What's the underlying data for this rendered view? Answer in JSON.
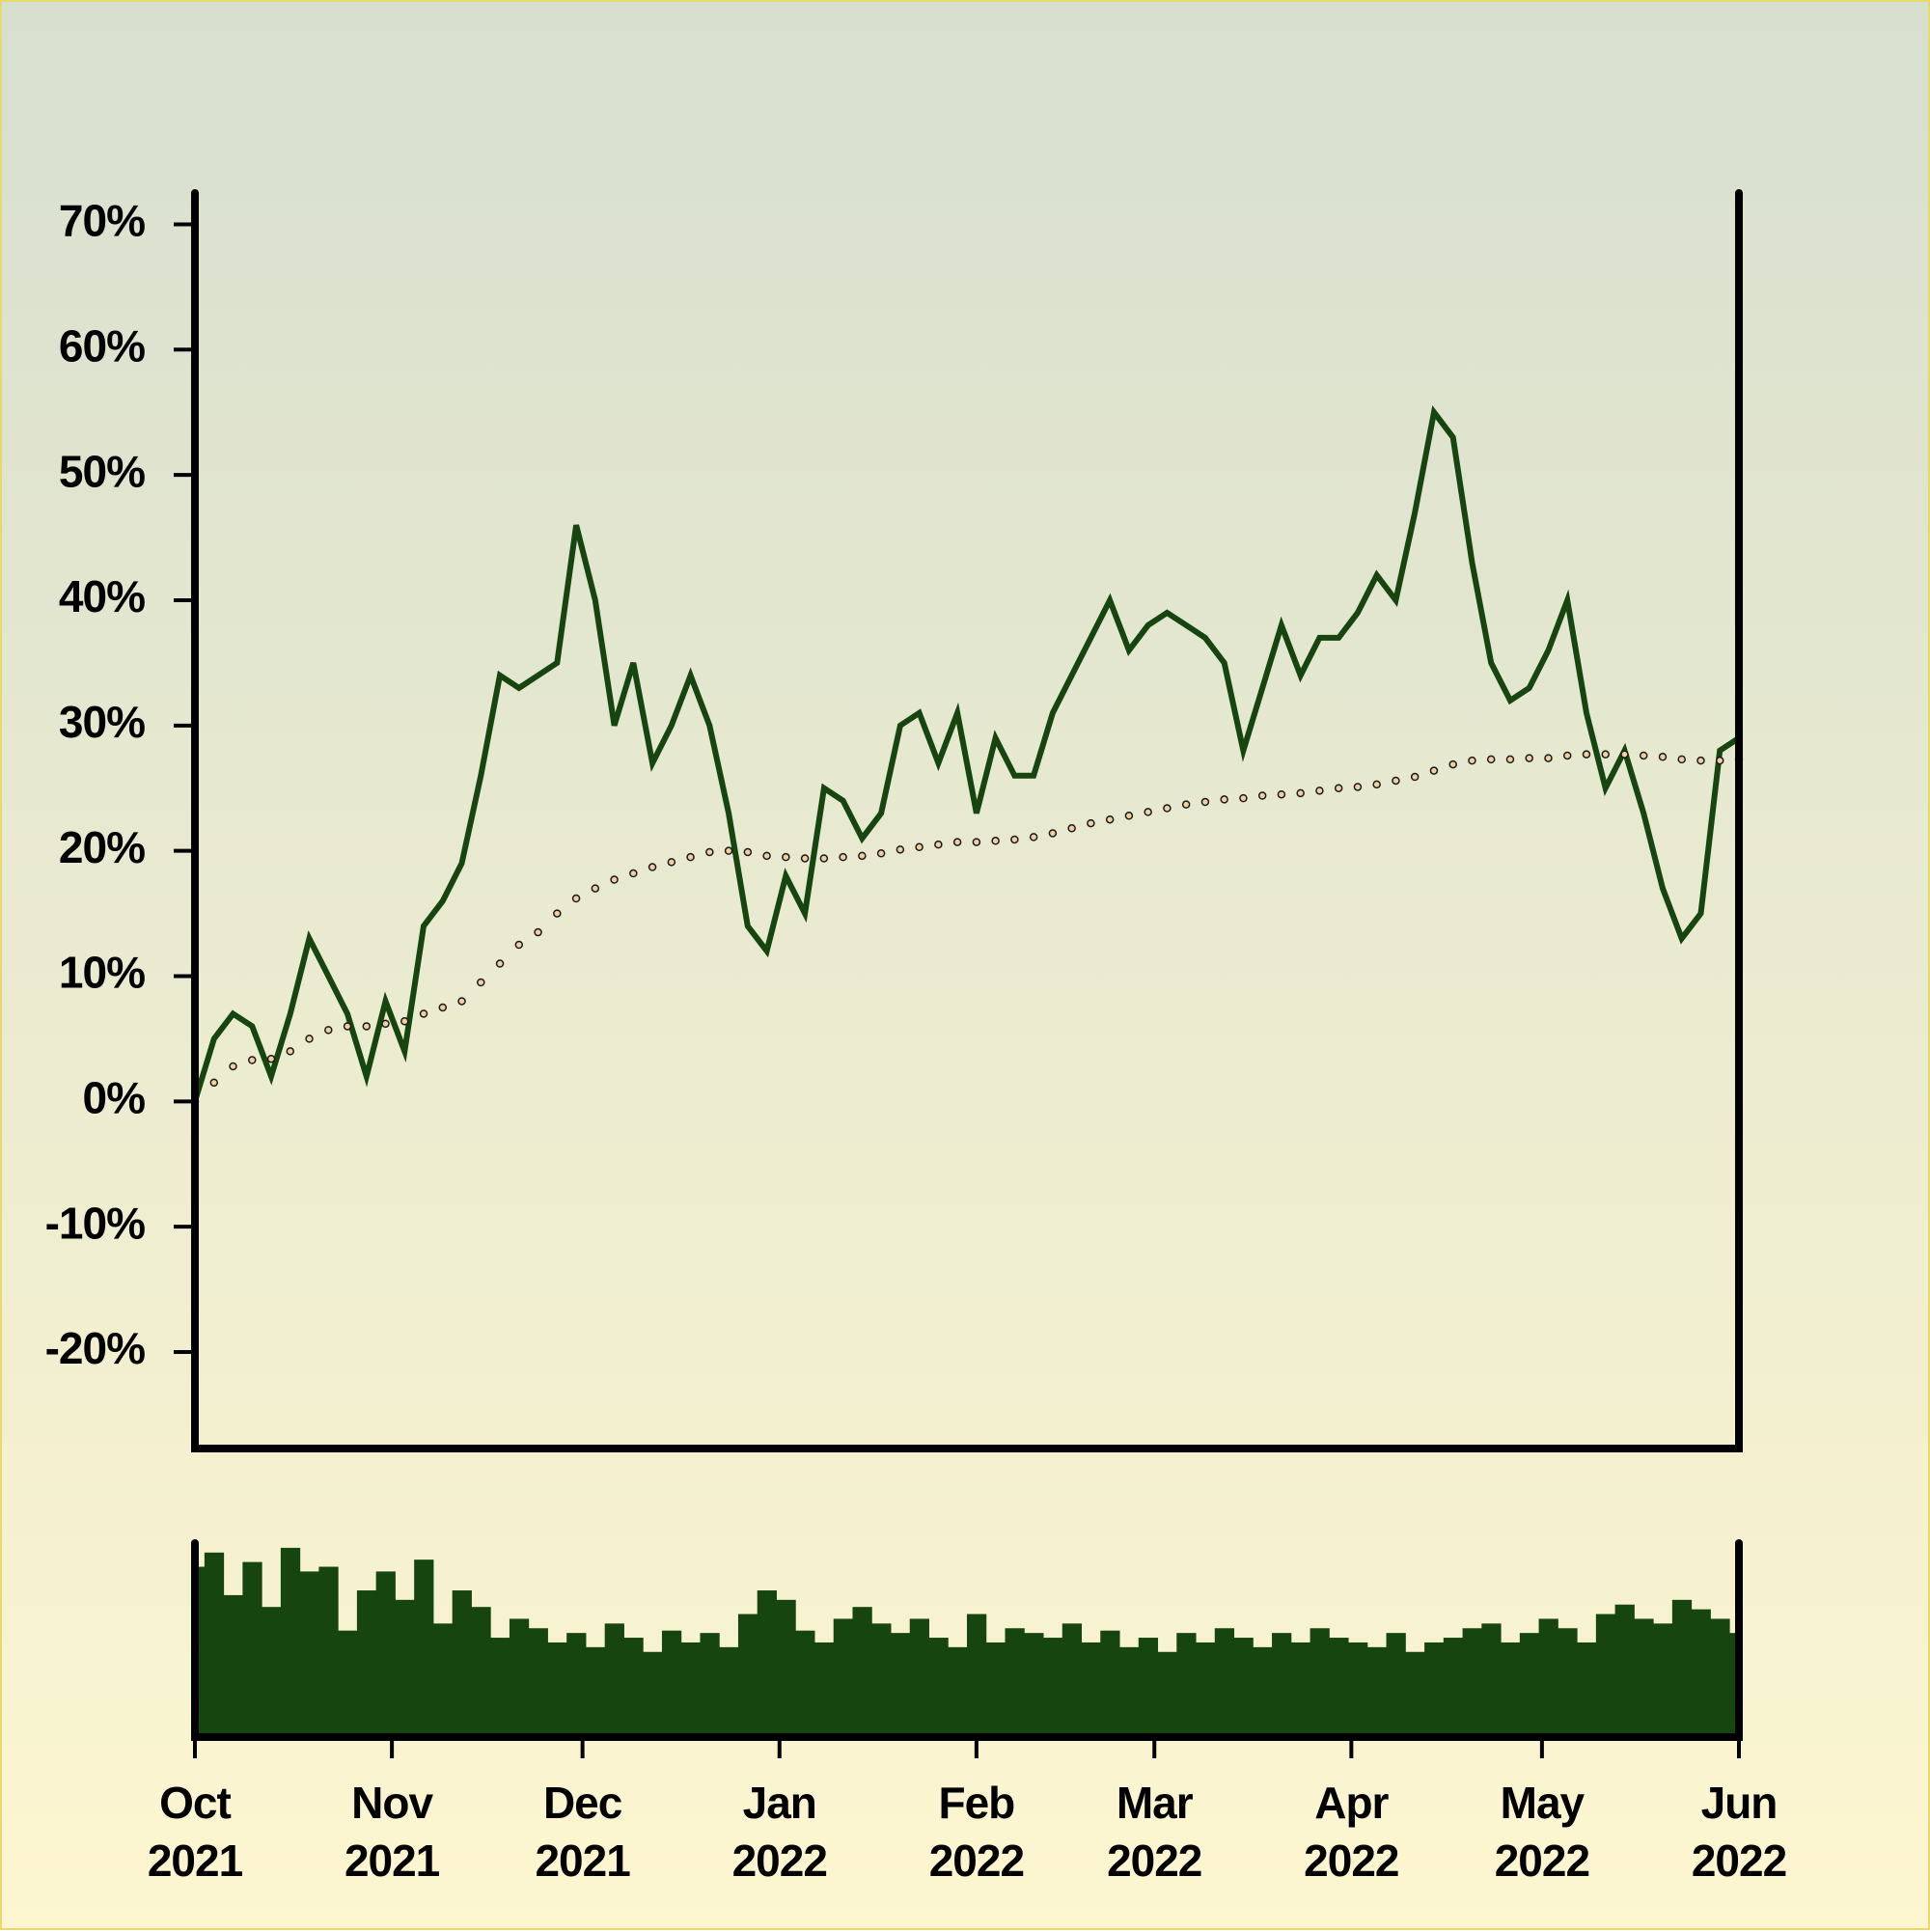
{
  "chart_data": [
    {
      "type": "line",
      "x": [
        "2021-10-01",
        "2021-10-04",
        "2021-10-07",
        "2021-10-10",
        "2021-10-13",
        "2021-10-16",
        "2021-10-19",
        "2021-10-22",
        "2021-10-25",
        "2021-10-28",
        "2021-10-31",
        "2021-11-03",
        "2021-11-06",
        "2021-11-09",
        "2021-11-12",
        "2021-11-15",
        "2021-11-18",
        "2021-11-21",
        "2021-11-24",
        "2021-11-27",
        "2021-11-30",
        "2021-12-03",
        "2021-12-06",
        "2021-12-09",
        "2021-12-12",
        "2021-12-15",
        "2021-12-18",
        "2021-12-21",
        "2021-12-24",
        "2021-12-27",
        "2021-12-30",
        "2022-01-02",
        "2022-01-05",
        "2022-01-08",
        "2022-01-11",
        "2022-01-14",
        "2022-01-17",
        "2022-01-20",
        "2022-01-23",
        "2022-01-26",
        "2022-01-29",
        "2022-02-01",
        "2022-02-04",
        "2022-02-07",
        "2022-02-10",
        "2022-02-13",
        "2022-02-16",
        "2022-02-19",
        "2022-02-22",
        "2022-02-25",
        "2022-02-28",
        "2022-03-03",
        "2022-03-06",
        "2022-03-09",
        "2022-03-12",
        "2022-03-15",
        "2022-03-18",
        "2022-03-21",
        "2022-03-24",
        "2022-03-27",
        "2022-03-30",
        "2022-04-02",
        "2022-04-05",
        "2022-04-08",
        "2022-04-11",
        "2022-04-14",
        "2022-04-17",
        "2022-04-20",
        "2022-04-23",
        "2022-04-26",
        "2022-04-29",
        "2022-05-02",
        "2022-05-05",
        "2022-05-08",
        "2022-05-11",
        "2022-05-14",
        "2022-05-17",
        "2022-05-20",
        "2022-05-23",
        "2022-05-26",
        "2022-05-29",
        "2022-06-01"
      ],
      "series": [
        {
          "color": "#17450f",
          "mode": "line",
          "values": [
            0,
            5,
            7,
            6,
            2,
            7,
            13,
            10,
            7,
            2,
            8,
            4,
            14,
            16,
            19,
            26,
            34,
            33,
            34,
            35,
            46,
            40,
            30,
            35,
            27,
            30,
            34,
            30,
            23,
            14,
            12,
            18,
            15,
            25,
            24,
            21,
            23,
            30,
            31,
            27,
            31,
            23,
            29,
            26,
            26,
            31,
            34,
            37,
            40,
            36,
            38,
            39,
            38,
            37,
            35,
            28,
            33,
            38,
            34,
            37,
            37,
            39,
            42,
            40,
            47,
            55,
            53,
            43,
            35,
            32,
            33,
            36,
            40,
            31,
            25,
            28,
            23,
            17,
            13,
            15,
            28,
            29
          ]
        },
        {
          "color": "#f2cfa0",
          "mode": "markers",
          "values": [
            0,
            1.5,
            2.8,
            3.3,
            3.4,
            4,
            5,
            5.7,
            6,
            6,
            6.2,
            6.4,
            7,
            7.5,
            8,
            9.5,
            11,
            12.5,
            13.5,
            15,
            16.2,
            17,
            17.7,
            18.2,
            18.7,
            19.1,
            19.5,
            19.9,
            20,
            19.9,
            19.6,
            19.5,
            19.4,
            19.4,
            19.5,
            19.6,
            19.8,
            20.1,
            20.3,
            20.5,
            20.7,
            20.7,
            20.8,
            20.9,
            21.1,
            21.4,
            21.8,
            22.2,
            22.5,
            22.8,
            23.1,
            23.4,
            23.7,
            23.9,
            24.1,
            24.2,
            24.4,
            24.5,
            24.6,
            24.8,
            25,
            25.1,
            25.3,
            25.6,
            25.9,
            26.4,
            26.9,
            27.2,
            27.3,
            27.3,
            27.4,
            27.4,
            27.6,
            27.7,
            27.7,
            27.7,
            27.6,
            27.5,
            27.3,
            27.2,
            27.2,
            27.3
          ]
        }
      ],
      "xlim": [
        "2021-10-01",
        "2022-06-01"
      ],
      "ylim": [
        -27.7,
        72.5
      ],
      "yticks": [
        {
          "value": -20,
          "label": "-20%"
        },
        {
          "value": -10,
          "label": "-10%"
        },
        {
          "value": 0,
          "label": "0%"
        },
        {
          "value": 10,
          "label": "10%"
        },
        {
          "value": 20,
          "label": "20%"
        },
        {
          "value": 30,
          "label": "30%"
        },
        {
          "value": 40,
          "label": "40%"
        },
        {
          "value": 50,
          "label": "50%"
        },
        {
          "value": 60,
          "label": "60%"
        },
        {
          "value": 70,
          "label": "70%"
        }
      ]
    },
    {
      "type": "bar",
      "color": "#17450f",
      "values": [
        72,
        78,
        60,
        74,
        55,
        80,
        70,
        72,
        45,
        62,
        70,
        58,
        75,
        48,
        62,
        55,
        42,
        50,
        46,
        40,
        44,
        38,
        48,
        42,
        36,
        45,
        40,
        44,
        38,
        52,
        62,
        58,
        45,
        40,
        50,
        55,
        48,
        44,
        50,
        42,
        38,
        52,
        40,
        46,
        44,
        42,
        48,
        40,
        45,
        38,
        42,
        36,
        44,
        40,
        46,
        42,
        38,
        44,
        40,
        46,
        42,
        40,
        38,
        44,
        36,
        40,
        42,
        46,
        48,
        40,
        44,
        50,
        46,
        40,
        52,
        56,
        50,
        48,
        58,
        54,
        50,
        44
      ],
      "ylim": [
        0,
        82
      ],
      "xticks": [
        {
          "value": "2021-10-01",
          "label": "Oct\n2021"
        },
        {
          "value": "2021-11-01",
          "label": "Nov\n2021"
        },
        {
          "value": "2021-12-01",
          "label": "Dec\n2021"
        },
        {
          "value": "2022-01-01",
          "label": "Jan\n2022"
        },
        {
          "value": "2022-02-01",
          "label": "Feb\n2022"
        },
        {
          "value": "2022-03-01",
          "label": "Mar\n2022"
        },
        {
          "value": "2022-04-01",
          "label": "Apr\n2022"
        },
        {
          "value": "2022-05-01",
          "label": "May\n2022"
        },
        {
          "value": "2022-06-01",
          "label": "Jun\n2022"
        }
      ]
    }
  ]
}
